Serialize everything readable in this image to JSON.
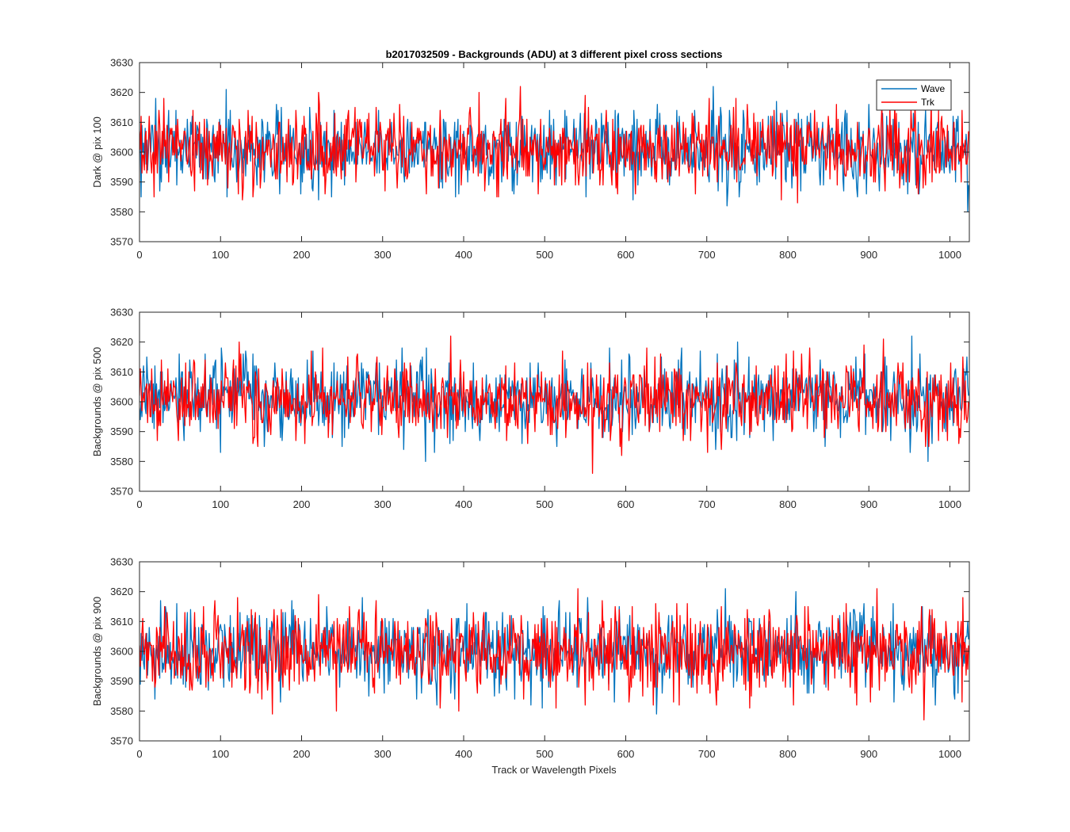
{
  "chart_data": [
    {
      "type": "line",
      "title": "b2017032509 - Backgrounds (ADU) at 3 different pixel cross sections",
      "xlabel": "",
      "ylabel": "Dark @ pix 100",
      "xlim": [
        0,
        1024
      ],
      "ylim": [
        3570,
        3630
      ],
      "xticks": [
        0,
        100,
        200,
        300,
        400,
        500,
        600,
        700,
        800,
        900,
        1000
      ],
      "yticks": [
        3570,
        3580,
        3590,
        3600,
        3610,
        3620,
        3630
      ],
      "grid": false,
      "legend": "top-right",
      "noise": {
        "n": 1024,
        "mean": 3601,
        "sd": 6.5,
        "clip": [
          3576,
          3629
        ]
      },
      "series": [
        {
          "name": "Wave",
          "color": "#0072BD"
        },
        {
          "name": "Trk",
          "color": "#FF0000"
        }
      ]
    },
    {
      "type": "line",
      "title": "",
      "xlabel": "",
      "ylabel": "Backgrounds @ pix 500",
      "xlim": [
        0,
        1024
      ],
      "ylim": [
        3570,
        3630
      ],
      "xticks": [
        0,
        100,
        200,
        300,
        400,
        500,
        600,
        700,
        800,
        900,
        1000
      ],
      "yticks": [
        3570,
        3580,
        3590,
        3600,
        3610,
        3620,
        3630
      ],
      "grid": false,
      "noise": {
        "n": 1024,
        "mean": 3601,
        "sd": 6.5,
        "clip": [
          3576,
          3625
        ]
      },
      "series": [
        {
          "name": "Wave",
          "color": "#0072BD"
        },
        {
          "name": "Trk",
          "color": "#FF0000"
        }
      ]
    },
    {
      "type": "line",
      "title": "",
      "xlabel": "Track or Wavelength Pixels",
      "ylabel": "Backgrounds @ pix 900",
      "xlim": [
        0,
        1024
      ],
      "ylim": [
        3570,
        3630
      ],
      "xticks": [
        0,
        100,
        200,
        300,
        400,
        500,
        600,
        700,
        800,
        900,
        1000
      ],
      "yticks": [
        3570,
        3580,
        3590,
        3600,
        3610,
        3620,
        3630
      ],
      "grid": false,
      "noise": {
        "n": 1024,
        "mean": 3600,
        "sd": 7.0,
        "clip": [
          3572,
          3630
        ]
      },
      "series": [
        {
          "name": "Wave",
          "color": "#0072BD"
        },
        {
          "name": "Trk",
          "color": "#FF0000"
        }
      ]
    }
  ]
}
